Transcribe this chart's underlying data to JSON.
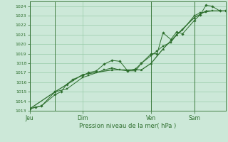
{
  "background_color": "#cce8d8",
  "grid_color": "#99ccaa",
  "line_color": "#2d6e2d",
  "marker_color": "#2d6e2d",
  "title": "Pression niveau de la mer( hPa )",
  "ylim": [
    1013,
    1024.5
  ],
  "yticks": [
    1013,
    1014,
    1015,
    1016,
    1017,
    1018,
    1019,
    1020,
    1021,
    1022,
    1023,
    1024
  ],
  "xtick_labels": [
    "Jeu",
    "Dim",
    "Ven",
    "Sam"
  ],
  "xtick_positions": [
    0.0,
    0.27,
    0.62,
    0.84
  ],
  "vline_positions": [
    0.0,
    0.13,
    0.62,
    0.84
  ],
  "series1_x": [
    0.0,
    0.03,
    0.06,
    0.13,
    0.16,
    0.19,
    0.22,
    0.27,
    0.3,
    0.34,
    0.38,
    0.42,
    0.46,
    0.5,
    0.54,
    0.57,
    0.62,
    0.65,
    0.68,
    0.72,
    0.75,
    0.78,
    0.84,
    0.87,
    0.9,
    0.93,
    0.97,
    1.0
  ],
  "series1_y": [
    1013.2,
    1013.4,
    1013.5,
    1014.7,
    1015.0,
    1015.8,
    1016.3,
    1016.7,
    1017.0,
    1017.2,
    1017.9,
    1018.3,
    1018.2,
    1017.2,
    1017.4,
    1018.0,
    1019.0,
    1019.0,
    1021.2,
    1020.5,
    1021.3,
    1021.1,
    1022.5,
    1023.1,
    1024.1,
    1024.0,
    1023.5,
    1023.5
  ],
  "series2_x": [
    0.0,
    0.06,
    0.13,
    0.19,
    0.27,
    0.3,
    0.34,
    0.38,
    0.42,
    0.46,
    0.5,
    0.54,
    0.57,
    0.62,
    0.65,
    0.68,
    0.72,
    0.75,
    0.78,
    0.84,
    0.87,
    0.9,
    0.93,
    0.97,
    1.0
  ],
  "series2_y": [
    1013.2,
    1013.5,
    1015.0,
    1015.3,
    1016.5,
    1016.7,
    1017.0,
    1017.3,
    1017.5,
    1017.3,
    1017.2,
    1017.2,
    1018.0,
    1018.8,
    1019.3,
    1019.8,
    1020.2,
    1021.0,
    1021.5,
    1023.0,
    1023.3,
    1023.4,
    1023.5,
    1023.5,
    1023.5
  ],
  "series3_x": [
    0.0,
    0.13,
    0.27,
    0.42,
    0.57,
    0.62,
    0.68,
    0.75,
    0.84,
    0.9,
    1.0
  ],
  "series3_y": [
    1013.2,
    1015.0,
    1016.8,
    1017.3,
    1017.3,
    1018.0,
    1019.5,
    1021.0,
    1022.8,
    1023.5,
    1023.5
  ]
}
